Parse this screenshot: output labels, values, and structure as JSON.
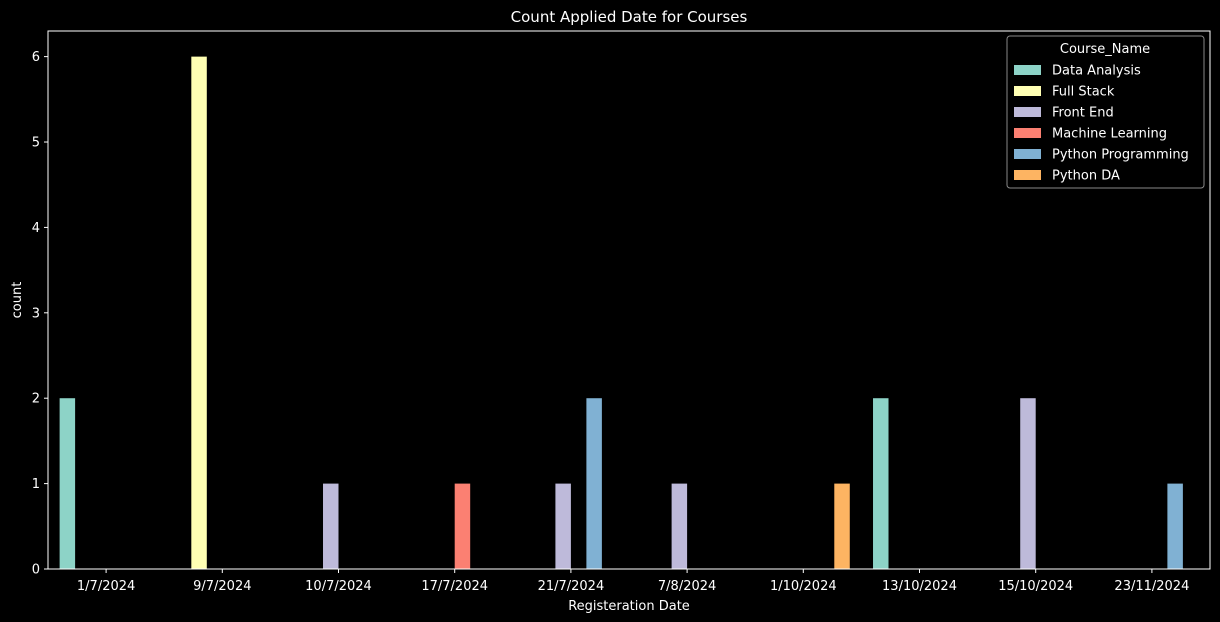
{
  "chart_data": {
    "type": "bar",
    "title": "Count Applied Date for Courses",
    "xlabel": "Registeration Date",
    "ylabel": "count",
    "ylim": [
      0,
      6.3
    ],
    "yticks": [
      0,
      1,
      2,
      3,
      4,
      5,
      6
    ],
    "grid": false,
    "legend_title": "Course_Name",
    "legend_position": "top-right",
    "background": "#000000",
    "categories": [
      "1/7/2024",
      "9/7/2024",
      "10/7/2024",
      "17/7/2024",
      "21/7/2024",
      "7/8/2024",
      "1/10/2024",
      "13/10/2024",
      "15/10/2024",
      "23/11/2024"
    ],
    "series": [
      {
        "name": "Data Analysis",
        "color": "#8dd3c7",
        "values": [
          2,
          0,
          0,
          0,
          0,
          0,
          0,
          2,
          0,
          0
        ]
      },
      {
        "name": "Full Stack",
        "color": "#ffffb3",
        "values": [
          0,
          6,
          0,
          0,
          0,
          0,
          0,
          0,
          0,
          0
        ]
      },
      {
        "name": "Front End",
        "color": "#bebada",
        "values": [
          0,
          0,
          1,
          0,
          1,
          1,
          0,
          0,
          2,
          0
        ]
      },
      {
        "name": "Machine Learning",
        "color": "#fb8072",
        "values": [
          0,
          0,
          0,
          1,
          0,
          0,
          0,
          0,
          0,
          0
        ]
      },
      {
        "name": "Python Programming",
        "color": "#80b1d3",
        "values": [
          0,
          0,
          0,
          0,
          2,
          0,
          0,
          0,
          0,
          1
        ]
      },
      {
        "name": "Python DA",
        "color": "#fdb462",
        "values": [
          0,
          0,
          0,
          0,
          0,
          0,
          1,
          0,
          0,
          0
        ]
      }
    ]
  }
}
